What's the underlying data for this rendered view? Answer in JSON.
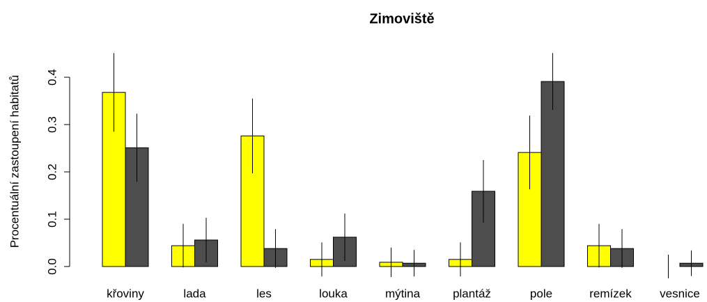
{
  "chart_data": {
    "type": "bar",
    "title": "Zimoviště",
    "ylabel": "Procentuální zastoupení habitatů",
    "categories": [
      "křoviny",
      "lada",
      "les",
      "louka",
      "mýtina",
      "plantáž",
      "pole",
      "remízek",
      "vesnice"
    ],
    "series": [
      {
        "color": "#ffff00",
        "values": [
          0.368,
          0.044,
          0.276,
          0.015,
          0.009,
          0.015,
          0.241,
          0.044,
          0.0
        ],
        "errors": [
          0.083,
          0.046,
          0.079,
          0.036,
          0.031,
          0.036,
          0.078,
          0.046,
          0.025
        ]
      },
      {
        "color": "#4d4d4d",
        "values": [
          0.251,
          0.056,
          0.038,
          0.062,
          0.007,
          0.159,
          0.391,
          0.038,
          0.007
        ],
        "errors": [
          0.072,
          0.047,
          0.041,
          0.05,
          0.028,
          0.066,
          0.06,
          0.041,
          0.027
        ]
      }
    ],
    "ylim": [
      0,
      0.45
    ],
    "yticks": [
      {
        "value": 0,
        "label": "0.0"
      },
      0.1,
      0.2,
      0.3,
      0.4
    ]
  }
}
